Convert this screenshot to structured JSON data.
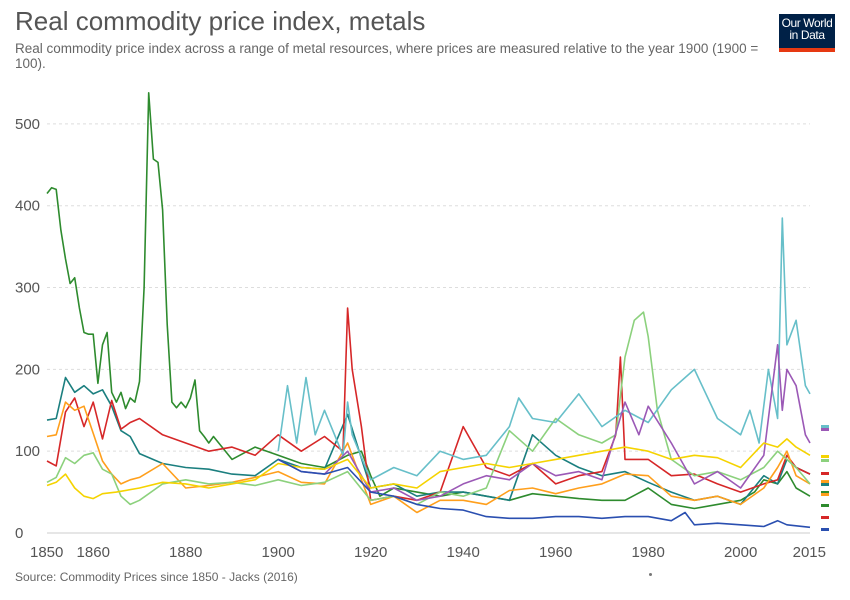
{
  "title": "Real commodity price index, metals",
  "subtitle": "Real commodity price index across a range of metal resources, where prices are measured relative to the year 1900 (1900 = 100).",
  "logo": {
    "line1": "Our World",
    "line2": "in Data"
  },
  "source": "Source: Commodity Prices since 1850 - Jacks (2016)",
  "footer_dot": "•",
  "colors": {
    "grid": "#dddddd",
    "axis": "#cccccc",
    "text": "#555555",
    "logo_bg": "#002147",
    "logo_accent": "#e63912"
  },
  "chart_data": {
    "type": "line",
    "title": "Real commodity price index, metals",
    "xlabel": "",
    "ylabel": "",
    "xlim": [
      1850,
      2015
    ],
    "ylim": [
      0,
      550
    ],
    "x_ticks": [
      1850,
      1860,
      1880,
      1900,
      1920,
      1940,
      1960,
      1980,
      2000,
      2015
    ],
    "x_tick_labels": [
      "1850",
      "1860",
      "1880",
      "1900",
      "1920",
      "1940",
      "1960",
      "1980",
      "2000",
      "2015"
    ],
    "y_ticks": [
      0,
      100,
      200,
      300,
      400,
      500
    ],
    "y_tick_labels": [
      "0",
      "100",
      "200",
      "300",
      "400",
      "500"
    ],
    "grid": true,
    "series": [
      {
        "name": "Green (dark)",
        "color": "#2e8b2e",
        "x": [
          1850,
          1851,
          1852,
          1853,
          1854,
          1855,
          1856,
          1857,
          1858,
          1859,
          1860,
          1861,
          1862,
          1863,
          1864,
          1865,
          1866,
          1867,
          1868,
          1869,
          1870,
          1871,
          1872,
          1873,
          1874,
          1875,
          1876,
          1877,
          1878,
          1879,
          1880,
          1881,
          1882,
          1883,
          1884,
          1885,
          1886,
          1890,
          1895,
          1900,
          1905,
          1910,
          1915,
          1918,
          1920,
          1922,
          1925,
          1930,
          1935,
          1940,
          1945,
          1950,
          1955,
          1960,
          1965,
          1970,
          1975,
          1980,
          1985,
          1990,
          1995,
          2000,
          2003,
          2005,
          2008,
          2010,
          2012,
          2015
        ],
        "y": [
          415,
          422,
          420,
          370,
          335,
          305,
          312,
          275,
          245,
          243,
          243,
          183,
          230,
          245,
          172,
          160,
          172,
          152,
          165,
          160,
          185,
          300,
          538,
          457,
          453,
          395,
          255,
          160,
          153,
          160,
          153,
          165,
          187,
          125,
          118,
          110,
          118,
          90,
          105,
          95,
          85,
          80,
          95,
          100,
          70,
          45,
          55,
          50,
          45,
          50,
          45,
          40,
          48,
          45,
          42,
          40,
          40,
          55,
          35,
          30,
          35,
          40,
          50,
          65,
          60,
          75,
          55,
          45
        ]
      },
      {
        "name": "Teal",
        "color": "#1b7f7f",
        "x": [
          1850,
          1852,
          1854,
          1856,
          1858,
          1860,
          1862,
          1864,
          1866,
          1868,
          1870,
          1875,
          1880,
          1885,
          1890,
          1895,
          1900,
          1905,
          1910,
          1915,
          1920,
          1925,
          1930,
          1935,
          1940,
          1945,
          1950,
          1955,
          1960,
          1965,
          1970,
          1975,
          1980,
          1985,
          1990,
          1995,
          2000,
          2005,
          2008,
          2010,
          2012,
          2015
        ],
        "y": [
          138,
          140,
          190,
          172,
          180,
          170,
          175,
          155,
          125,
          118,
          97,
          85,
          80,
          78,
          72,
          70,
          90,
          80,
          78,
          145,
          55,
          60,
          45,
          50,
          50,
          45,
          40,
          120,
          95,
          80,
          70,
          75,
          62,
          50,
          40,
          45,
          35,
          70,
          60,
          90,
          80,
          72
        ]
      },
      {
        "name": "Red",
        "color": "#d62728",
        "x": [
          1850,
          1852,
          1854,
          1856,
          1858,
          1860,
          1862,
          1864,
          1866,
          1868,
          1870,
          1875,
          1880,
          1885,
          1890,
          1895,
          1900,
          1905,
          1910,
          1914,
          1915,
          1916,
          1918,
          1920,
          1925,
          1930,
          1935,
          1940,
          1945,
          1950,
          1955,
          1960,
          1965,
          1970,
          1973,
          1974,
          1975,
          1980,
          1985,
          1990,
          1995,
          2000,
          2005,
          2008,
          2010,
          2012,
          2015
        ],
        "y": [
          88,
          82,
          148,
          165,
          130,
          160,
          115,
          162,
          127,
          135,
          140,
          120,
          110,
          100,
          105,
          95,
          120,
          100,
          118,
          100,
          275,
          200,
          130,
          40,
          45,
          40,
          50,
          130,
          80,
          70,
          85,
          60,
          70,
          75,
          120,
          215,
          90,
          90,
          70,
          72,
          60,
          50,
          60,
          65,
          95,
          80,
          72
        ]
      },
      {
        "name": "Orange",
        "color": "#ff9f1c",
        "x": [
          1850,
          1852,
          1854,
          1856,
          1858,
          1860,
          1862,
          1864,
          1866,
          1868,
          1870,
          1875,
          1880,
          1885,
          1890,
          1895,
          1900,
          1905,
          1910,
          1915,
          1920,
          1925,
          1930,
          1935,
          1940,
          1945,
          1950,
          1955,
          1960,
          1965,
          1970,
          1975,
          1980,
          1985,
          1990,
          1995,
          2000,
          2005,
          2008,
          2010,
          2012,
          2015
        ],
        "y": [
          118,
          120,
          160,
          150,
          155,
          122,
          88,
          72,
          60,
          65,
          68,
          85,
          55,
          58,
          62,
          68,
          75,
          62,
          60,
          110,
          35,
          45,
          25,
          40,
          40,
          35,
          52,
          55,
          48,
          55,
          60,
          72,
          70,
          45,
          40,
          45,
          35,
          55,
          80,
          100,
          70,
          60
        ]
      },
      {
        "name": "Light green",
        "color": "#8cd17d",
        "x": [
          1850,
          1852,
          1854,
          1856,
          1858,
          1860,
          1862,
          1864,
          1866,
          1868,
          1870,
          1875,
          1880,
          1885,
          1890,
          1895,
          1900,
          1905,
          1910,
          1915,
          1920,
          1925,
          1930,
          1935,
          1940,
          1945,
          1950,
          1955,
          1960,
          1965,
          1970,
          1973,
          1975,
          1977,
          1979,
          1980,
          1982,
          1985,
          1990,
          1995,
          2000,
          2005,
          2008,
          2010,
          2012,
          2015
        ],
        "y": [
          62,
          68,
          92,
          85,
          95,
          98,
          78,
          72,
          45,
          35,
          40,
          60,
          65,
          60,
          62,
          58,
          65,
          58,
          62,
          75,
          40,
          45,
          35,
          50,
          45,
          55,
          125,
          100,
          140,
          120,
          110,
          120,
          215,
          260,
          270,
          240,
          150,
          90,
          70,
          75,
          65,
          80,
          100,
          90,
          80,
          60
        ]
      },
      {
        "name": "Light blue",
        "color": "#67bfc9",
        "x": [
          1900,
          1902,
          1904,
          1906,
          1908,
          1910,
          1914,
          1915,
          1916,
          1920,
          1925,
          1930,
          1935,
          1940,
          1945,
          1950,
          1952,
          1955,
          1960,
          1965,
          1970,
          1975,
          1980,
          1985,
          1990,
          1995,
          2000,
          2002,
          2004,
          2006,
          2008,
          2009,
          2010,
          2012,
          2014,
          2015
        ],
        "y": [
          100,
          180,
          110,
          190,
          120,
          150,
          95,
          160,
          120,
          65,
          80,
          70,
          100,
          90,
          95,
          130,
          165,
          140,
          135,
          170,
          130,
          150,
          135,
          175,
          200,
          140,
          120,
          150,
          110,
          200,
          140,
          385,
          230,
          260,
          180,
          170
        ]
      },
      {
        "name": "Purple",
        "color": "#9b59b6",
        "x": [
          1900,
          1905,
          1910,
          1915,
          1920,
          1925,
          1930,
          1935,
          1940,
          1945,
          1950,
          1955,
          1960,
          1965,
          1970,
          1975,
          1978,
          1980,
          1985,
          1990,
          1995,
          2000,
          2005,
          2008,
          2009,
          2010,
          2012,
          2014,
          2015
        ],
        "y": [
          90,
          75,
          72,
          100,
          50,
          55,
          40,
          45,
          60,
          70,
          65,
          85,
          70,
          75,
          65,
          160,
          120,
          155,
          110,
          60,
          75,
          55,
          95,
          230,
          150,
          200,
          180,
          120,
          110
        ]
      },
      {
        "name": "Yellow",
        "color": "#f5d300",
        "x": [
          1850,
          1852,
          1854,
          1856,
          1858,
          1860,
          1862,
          1865,
          1870,
          1875,
          1880,
          1885,
          1890,
          1895,
          1900,
          1905,
          1910,
          1915,
          1920,
          1925,
          1930,
          1935,
          1940,
          1945,
          1950,
          1955,
          1960,
          1965,
          1970,
          1975,
          1980,
          1985,
          1990,
          1995,
          2000,
          2005,
          2008,
          2010,
          2012,
          2015
        ],
        "y": [
          58,
          62,
          72,
          55,
          45,
          42,
          48,
          50,
          55,
          62,
          60,
          55,
          60,
          65,
          85,
          80,
          78,
          90,
          55,
          60,
          55,
          75,
          80,
          85,
          80,
          85,
          90,
          95,
          100,
          105,
          100,
          90,
          95,
          92,
          80,
          110,
          105,
          115,
          105,
          95
        ]
      },
      {
        "name": "Dark blue",
        "color": "#2a4fb0",
        "x": [
          1900,
          1905,
          1910,
          1915,
          1920,
          1925,
          1930,
          1935,
          1940,
          1945,
          1950,
          1955,
          1960,
          1965,
          1970,
          1975,
          1980,
          1985,
          1988,
          1990,
          1995,
          2000,
          2005,
          2008,
          2010,
          2015
        ],
        "y": [
          90,
          75,
          72,
          80,
          50,
          45,
          35,
          30,
          28,
          20,
          18,
          18,
          20,
          20,
          18,
          20,
          20,
          15,
          25,
          10,
          12,
          10,
          8,
          15,
          10,
          7
        ]
      }
    ],
    "legend_swatches_colors": [
      "#67bfc9",
      "#9b59b6",
      "#f5d300",
      "#8cd17d",
      "#d62728",
      "#ff9f1c",
      "#1b7f7f",
      "#2e8b2e",
      "#ff9f1c",
      "#2e8b2e",
      "#d62728",
      "#2a4fb0"
    ]
  }
}
